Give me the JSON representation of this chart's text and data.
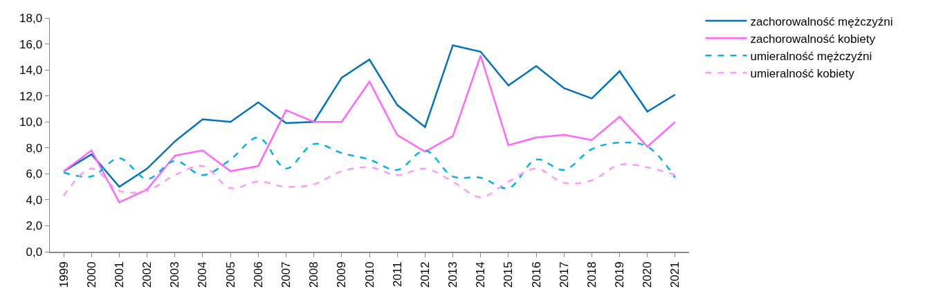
{
  "chart_data": {
    "type": "line",
    "categories": [
      "1999",
      "2000",
      "2001",
      "2002",
      "2003",
      "2004",
      "2005",
      "2006",
      "2007",
      "2008",
      "2009",
      "2010",
      "2011",
      "2012",
      "2013",
      "2014",
      "2015",
      "2016",
      "2017",
      "2018",
      "2019",
      "2020",
      "2021"
    ],
    "series": [
      {
        "name": "zachorowalność mężczyźni",
        "color": "#0070c0",
        "line_style": "solid",
        "values": [
          6.2,
          7.5,
          5.0,
          6.4,
          8.5,
          10.2,
          10.0,
          11.5,
          9.9,
          10.0,
          13.4,
          14.8,
          11.3,
          9.6,
          15.9,
          15.4,
          12.8,
          14.3,
          12.6,
          11.8,
          13.9,
          10.8,
          12.1
        ]
      },
      {
        "name": "zachorowalność kobiety",
        "color": "#ff66ff",
        "line_style": "solid",
        "values": [
          6.2,
          7.8,
          3.8,
          4.8,
          7.4,
          7.8,
          6.2,
          6.6,
          10.9,
          10.0,
          10.0,
          13.1,
          9.0,
          7.7,
          8.9,
          15.1,
          8.2,
          8.8,
          9.0,
          8.6,
          10.4,
          8.1,
          10.0
        ]
      },
      {
        "name": "umieralność mężczyźni",
        "color": "#00b0f0",
        "line_style": "dashed",
        "values": [
          6.1,
          5.8,
          7.2,
          5.6,
          7.0,
          5.9,
          7.1,
          8.8,
          6.4,
          8.3,
          7.6,
          7.1,
          6.3,
          7.8,
          5.8,
          5.7,
          4.9,
          7.1,
          6.3,
          7.9,
          8.4,
          8.1,
          5.7
        ]
      },
      {
        "name": "umieralność kobiety",
        "color": "#ff99ff",
        "line_style": "dashed",
        "values": [
          4.3,
          6.4,
          4.7,
          4.7,
          5.9,
          6.6,
          4.9,
          5.4,
          5.0,
          5.2,
          6.2,
          6.5,
          5.9,
          6.4,
          5.4,
          4.2,
          5.4,
          6.4,
          5.3,
          5.5,
          6.7,
          6.5,
          5.9
        ]
      }
    ],
    "ylim": [
      0,
      18
    ],
    "yticks": [
      {
        "value": 0,
        "label": "0,0"
      },
      {
        "value": 2,
        "label": "2,0"
      },
      {
        "value": 4,
        "label": "4,0"
      },
      {
        "value": 6,
        "label": "6,0"
      },
      {
        "value": 8,
        "label": "8,0"
      },
      {
        "value": 10,
        "label": "10,0"
      },
      {
        "value": 12,
        "label": "12,0"
      },
      {
        "value": 14,
        "label": "14,0"
      },
      {
        "value": 16,
        "label": "16,0"
      },
      {
        "value": 18,
        "label": "18,0"
      }
    ],
    "grid": false,
    "legend": "right",
    "marker": "none"
  }
}
